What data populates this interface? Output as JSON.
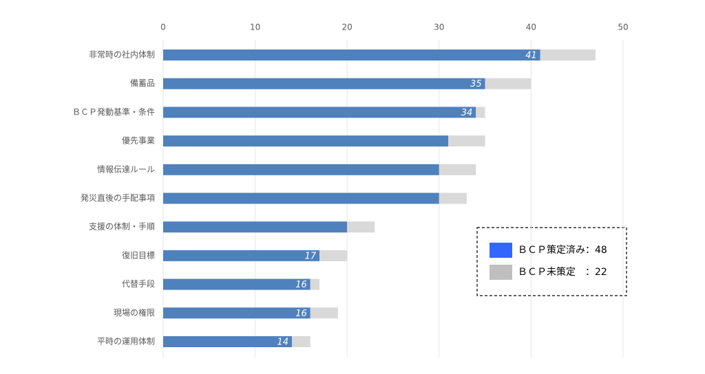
{
  "chart_data": {
    "type": "stacked_barh",
    "categories": [
      "非常時の社内体制",
      "備蓄品",
      "ＢＣＰ発動基準・条件",
      "優先事業",
      "情報伝達ルール",
      "発災直後の手配事項",
      "支援の体制・手順",
      "復旧目標",
      "代替手段",
      "現場の権限",
      "平時の運用体制"
    ],
    "series": [
      {
        "name": "ＢＣＰ策定済み：48",
        "color": "#4f81bd",
        "legend_color": "#3366ff",
        "values": [
          41,
          35,
          34,
          31,
          30,
          30,
          20,
          17,
          16,
          16,
          14
        ],
        "value_labels": [
          "41",
          "35",
          "34",
          null,
          null,
          null,
          null,
          "17",
          "16",
          "16",
          "14"
        ]
      },
      {
        "name": "ＢＣＰ未策定　：22",
        "color": "#d9d9d9",
        "legend_color": "#bfbfbf",
        "values": [
          6,
          5,
          1,
          4,
          4,
          3,
          3,
          3,
          1,
          3,
          2
        ]
      }
    ],
    "xlim": [
      0,
      50
    ],
    "xticks": [
      0,
      10,
      20,
      30,
      40,
      50
    ],
    "grid": true,
    "legend": "lower right"
  }
}
